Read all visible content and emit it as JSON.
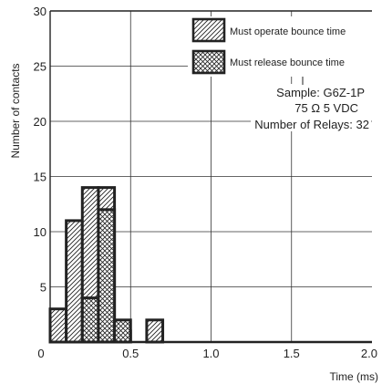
{
  "chart_data": {
    "type": "histogram",
    "ylabel": "Number of contacts",
    "xlabel": "Time (ms)",
    "xlim": [
      0,
      2.0
    ],
    "ylim": [
      0,
      30
    ],
    "x_ticks": [
      {
        "value": 0,
        "label": "0"
      },
      {
        "value": 0.5,
        "label": "0.5"
      },
      {
        "value": 1.0,
        "label": "1.0"
      },
      {
        "value": 1.5,
        "label": "1.5"
      },
      {
        "value": 2.0,
        "label": "2.0"
      }
    ],
    "y_ticks": [
      {
        "value": 5,
        "label": "5"
      },
      {
        "value": 10,
        "label": "10"
      },
      {
        "value": 15,
        "label": "15"
      },
      {
        "value": 20,
        "label": "20"
      },
      {
        "value": 25,
        "label": "25"
      },
      {
        "value": 30,
        "label": "30"
      }
    ],
    "grid": true,
    "bin_width": 0.1,
    "series": [
      {
        "name": "Must operate bounce time",
        "pattern": "diagonal",
        "bins": [
          {
            "x0": 0.0,
            "x1": 0.1,
            "count": 3
          },
          {
            "x0": 0.1,
            "x1": 0.2,
            "count": 11
          },
          {
            "x0": 0.2,
            "x1": 0.3,
            "count": 14
          },
          {
            "x0": 0.3,
            "x1": 0.4,
            "count": 14
          },
          {
            "x0": 0.4,
            "x1": 0.5,
            "count": 1
          },
          {
            "x0": 0.6,
            "x1": 0.7,
            "count": 2
          }
        ]
      },
      {
        "name": "Must release bounce time",
        "pattern": "crosshatch",
        "bins": [
          {
            "x0": 0.2,
            "x1": 0.3,
            "count": 4
          },
          {
            "x0": 0.3,
            "x1": 0.4,
            "count": 12
          },
          {
            "x0": 0.4,
            "x1": 0.5,
            "count": 2
          }
        ]
      }
    ],
    "legend_position": "top-right",
    "annotation": {
      "lines": [
        "Sample: G6Z-1P",
        "75 Ω  5 VDC",
        "Number of Relays: 32"
      ]
    }
  }
}
